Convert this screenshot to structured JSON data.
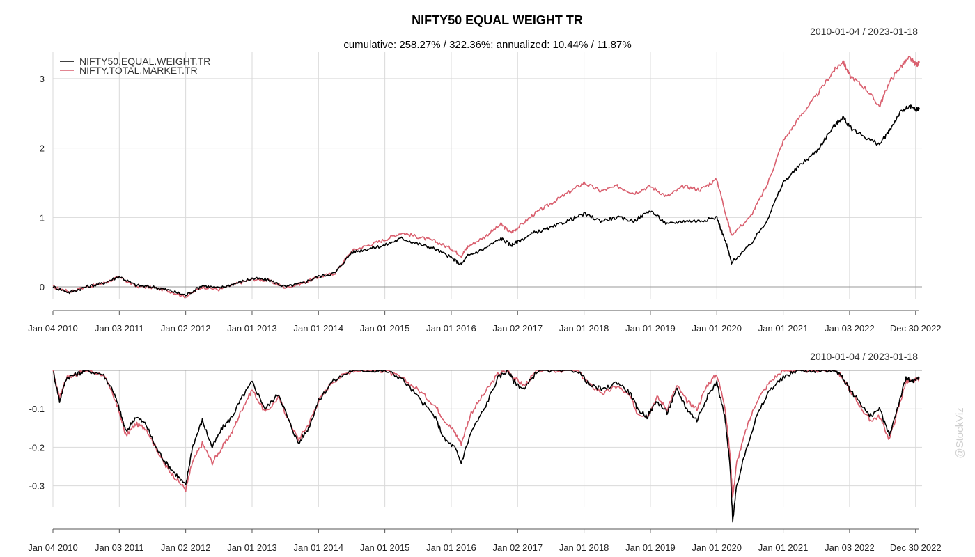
{
  "chart_data": [
    {
      "type": "line",
      "title": "NIFTY50 EQUAL WEIGHT TR",
      "subtitle": "cumulative: 258.27% / 322.36%; annualized: 10.44% / 11.87%",
      "date_range": "2010-01-04 / 2023-01-18",
      "x_ticks": [
        "Jan 04 2010",
        "Jan 03 2011",
        "Jan 02 2012",
        "Jan 01 2013",
        "Jan 01 2014",
        "Jan 01 2015",
        "Jan 01 2016",
        "Jan 02 2017",
        "Jan 01 2018",
        "Jan 01 2019",
        "Jan 01 2020",
        "Jan 01 2021",
        "Jan 03 2022",
        "Dec 30 2022"
      ],
      "y_ticks": [
        "0",
        "1",
        "2",
        "3"
      ],
      "ylim": [
        -0.18,
        3.38
      ],
      "grid": true,
      "legend_position": "top-left",
      "series": [
        {
          "name": "NIFTY50.EQUAL.WEIGHT.TR",
          "color": "#000000",
          "x": [
            2010.0,
            2010.25,
            2010.5,
            2010.75,
            2011.0,
            2011.25,
            2011.5,
            2011.75,
            2012.0,
            2012.25,
            2012.5,
            2012.75,
            2013.0,
            2013.25,
            2013.5,
            2013.75,
            2014.0,
            2014.25,
            2014.5,
            2014.75,
            2015.0,
            2015.25,
            2015.5,
            2015.75,
            2016.0,
            2016.15,
            2016.25,
            2016.5,
            2016.75,
            2016.9,
            2017.0,
            2017.25,
            2017.5,
            2017.75,
            2018.0,
            2018.25,
            2018.5,
            2018.75,
            2019.0,
            2019.25,
            2019.5,
            2019.75,
            2020.0,
            2020.15,
            2020.22,
            2020.5,
            2020.75,
            2021.0,
            2021.25,
            2021.5,
            2021.75,
            2021.9,
            2022.0,
            2022.25,
            2022.45,
            2022.6,
            2022.75,
            2022.9,
            2023.0,
            2023.05
          ],
          "y": [
            0.0,
            -0.08,
            0.0,
            0.05,
            0.15,
            0.02,
            0.0,
            -0.05,
            -0.12,
            0.02,
            -0.02,
            0.05,
            0.12,
            0.1,
            0.0,
            0.05,
            0.15,
            0.2,
            0.5,
            0.55,
            0.6,
            0.7,
            0.62,
            0.55,
            0.42,
            0.32,
            0.45,
            0.55,
            0.7,
            0.6,
            0.65,
            0.78,
            0.85,
            0.95,
            1.05,
            0.95,
            1.0,
            0.95,
            1.1,
            0.9,
            0.95,
            0.95,
            1.0,
            0.6,
            0.35,
            0.6,
            0.95,
            1.5,
            1.75,
            1.95,
            2.3,
            2.45,
            2.3,
            2.15,
            2.05,
            2.25,
            2.5,
            2.6,
            2.55,
            2.58
          ]
        },
        {
          "name": "NIFTY.TOTAL.MARKET.TR",
          "color": "#d95f6e",
          "x": [
            2010.0,
            2010.25,
            2010.5,
            2010.75,
            2011.0,
            2011.25,
            2011.5,
            2011.75,
            2012.0,
            2012.25,
            2012.5,
            2012.75,
            2013.0,
            2013.25,
            2013.5,
            2013.75,
            2014.0,
            2014.25,
            2014.5,
            2014.75,
            2015.0,
            2015.25,
            2015.5,
            2015.75,
            2016.0,
            2016.15,
            2016.25,
            2016.5,
            2016.75,
            2016.9,
            2017.0,
            2017.25,
            2017.5,
            2017.75,
            2018.0,
            2018.25,
            2018.5,
            2018.75,
            2019.0,
            2019.25,
            2019.5,
            2019.75,
            2020.0,
            2020.15,
            2020.22,
            2020.5,
            2020.75,
            2021.0,
            2021.25,
            2021.5,
            2021.75,
            2021.9,
            2022.0,
            2022.25,
            2022.45,
            2022.6,
            2022.75,
            2022.9,
            2023.0,
            2023.05
          ],
          "y": [
            0.0,
            -0.07,
            0.0,
            0.05,
            0.14,
            0.01,
            -0.01,
            -0.06,
            -0.14,
            0.0,
            -0.04,
            0.04,
            0.11,
            0.09,
            -0.01,
            0.05,
            0.14,
            0.2,
            0.52,
            0.6,
            0.68,
            0.78,
            0.72,
            0.66,
            0.55,
            0.45,
            0.58,
            0.72,
            0.9,
            0.78,
            0.85,
            1.05,
            1.2,
            1.35,
            1.5,
            1.38,
            1.45,
            1.35,
            1.45,
            1.3,
            1.45,
            1.4,
            1.55,
            1.0,
            0.75,
            1.0,
            1.45,
            2.1,
            2.45,
            2.75,
            3.1,
            3.25,
            3.05,
            2.85,
            2.6,
            2.95,
            3.15,
            3.3,
            3.2,
            3.22
          ]
        }
      ]
    },
    {
      "type": "line",
      "title": "",
      "date_range": "2010-01-04 / 2023-01-18",
      "x_ticks": [
        "Jan 04 2010",
        "Jan 03 2011",
        "Jan 02 2012",
        "Jan 01 2013",
        "Jan 01 2014",
        "Jan 01 2015",
        "Jan 01 2016",
        "Jan 02 2017",
        "Jan 01 2018",
        "Jan 01 2019",
        "Jan 01 2020",
        "Jan 01 2021",
        "Jan 03 2022",
        "Dec 30 2022"
      ],
      "y_ticks": [
        "-0.1",
        "-0.2",
        "-0.3"
      ],
      "ylim": [
        -0.395,
        0.0
      ],
      "grid": true,
      "series": [
        {
          "name": "NIFTY50.EQUAL.WEIGHT.TR",
          "color": "#000000",
          "x": [
            2010.0,
            2010.1,
            2010.2,
            2010.35,
            2010.5,
            2010.75,
            2010.9,
            2011.0,
            2011.1,
            2011.25,
            2011.4,
            2011.55,
            2011.7,
            2011.85,
            2012.0,
            2012.1,
            2012.25,
            2012.4,
            2012.55,
            2012.7,
            2012.85,
            2013.0,
            2013.2,
            2013.4,
            2013.55,
            2013.7,
            2013.85,
            2014.0,
            2014.2,
            2014.5,
            2014.8,
            2015.0,
            2015.25,
            2015.5,
            2015.75,
            2015.9,
            2016.05,
            2016.15,
            2016.3,
            2016.5,
            2016.7,
            2016.85,
            2016.95,
            2017.1,
            2017.3,
            2017.6,
            2017.9,
            2018.1,
            2018.3,
            2018.5,
            2018.7,
            2018.8,
            2018.95,
            2019.1,
            2019.25,
            2019.4,
            2019.55,
            2019.7,
            2019.85,
            2020.0,
            2020.12,
            2020.2,
            2020.24,
            2020.3,
            2020.45,
            2020.6,
            2020.8,
            2021.0,
            2021.2,
            2021.4,
            2021.6,
            2021.8,
            2021.9,
            2022.0,
            2022.15,
            2022.3,
            2022.45,
            2022.6,
            2022.75,
            2022.85,
            2022.95,
            2023.05
          ],
          "y": [
            0.0,
            -0.08,
            -0.02,
            -0.01,
            0.0,
            -0.01,
            -0.05,
            -0.1,
            -0.16,
            -0.12,
            -0.14,
            -0.2,
            -0.24,
            -0.27,
            -0.3,
            -0.2,
            -0.13,
            -0.2,
            -0.15,
            -0.12,
            -0.07,
            -0.03,
            -0.1,
            -0.06,
            -0.13,
            -0.19,
            -0.15,
            -0.08,
            -0.03,
            0.0,
            0.0,
            0.0,
            -0.02,
            -0.07,
            -0.12,
            -0.18,
            -0.2,
            -0.24,
            -0.16,
            -0.1,
            -0.02,
            0.0,
            -0.03,
            -0.05,
            0.0,
            0.0,
            0.0,
            -0.04,
            -0.05,
            -0.03,
            -0.06,
            -0.1,
            -0.12,
            -0.08,
            -0.11,
            -0.05,
            -0.1,
            -0.13,
            -0.07,
            -0.03,
            -0.12,
            -0.25,
            -0.39,
            -0.3,
            -0.2,
            -0.12,
            -0.05,
            -0.02,
            0.0,
            0.0,
            0.0,
            0.0,
            -0.02,
            -0.05,
            -0.08,
            -0.12,
            -0.1,
            -0.17,
            -0.08,
            -0.02,
            -0.03,
            -0.02
          ]
        },
        {
          "name": "NIFTY.TOTAL.MARKET.TR",
          "color": "#d95f6e",
          "x": [
            2010.0,
            2010.1,
            2010.2,
            2010.35,
            2010.5,
            2010.75,
            2010.9,
            2011.0,
            2011.1,
            2011.25,
            2011.4,
            2011.55,
            2011.7,
            2011.85,
            2012.0,
            2012.1,
            2012.25,
            2012.4,
            2012.55,
            2012.7,
            2012.85,
            2013.0,
            2013.2,
            2013.4,
            2013.55,
            2013.7,
            2013.85,
            2014.0,
            2014.2,
            2014.5,
            2014.8,
            2015.0,
            2015.25,
            2015.5,
            2015.75,
            2015.9,
            2016.05,
            2016.15,
            2016.3,
            2016.5,
            2016.7,
            2016.85,
            2016.95,
            2017.1,
            2017.3,
            2017.6,
            2017.9,
            2018.1,
            2018.3,
            2018.5,
            2018.7,
            2018.8,
            2018.95,
            2019.1,
            2019.25,
            2019.4,
            2019.55,
            2019.7,
            2019.85,
            2020.0,
            2020.12,
            2020.2,
            2020.24,
            2020.3,
            2020.45,
            2020.6,
            2020.8,
            2021.0,
            2021.2,
            2021.4,
            2021.6,
            2021.8,
            2021.9,
            2022.0,
            2022.15,
            2022.3,
            2022.45,
            2022.6,
            2022.75,
            2022.85,
            2022.95,
            2023.05
          ],
          "y": [
            0.0,
            -0.07,
            -0.02,
            -0.01,
            0.0,
            -0.01,
            -0.06,
            -0.11,
            -0.17,
            -0.14,
            -0.15,
            -0.2,
            -0.25,
            -0.28,
            -0.31,
            -0.24,
            -0.19,
            -0.24,
            -0.2,
            -0.16,
            -0.1,
            -0.05,
            -0.11,
            -0.07,
            -0.13,
            -0.18,
            -0.14,
            -0.08,
            -0.03,
            0.0,
            0.0,
            0.0,
            -0.02,
            -0.05,
            -0.09,
            -0.13,
            -0.16,
            -0.19,
            -0.11,
            -0.06,
            -0.01,
            0.0,
            -0.02,
            -0.04,
            0.0,
            0.0,
            0.0,
            -0.04,
            -0.06,
            -0.04,
            -0.07,
            -0.11,
            -0.12,
            -0.07,
            -0.1,
            -0.04,
            -0.08,
            -0.1,
            -0.04,
            -0.01,
            -0.09,
            -0.22,
            -0.33,
            -0.24,
            -0.15,
            -0.08,
            -0.03,
            0.0,
            0.0,
            0.0,
            0.0,
            0.0,
            -0.02,
            -0.05,
            -0.09,
            -0.13,
            -0.12,
            -0.18,
            -0.09,
            -0.03,
            -0.03,
            -0.02
          ]
        }
      ]
    }
  ],
  "watermark": "@StockViz"
}
